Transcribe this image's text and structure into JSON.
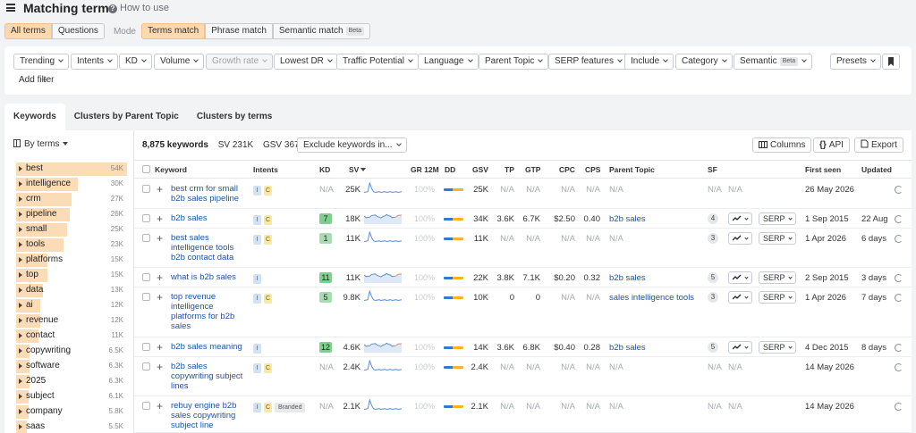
{
  "header": {
    "title": "Matching terms",
    "how_to_use": "How to use"
  },
  "toggles": {
    "all_terms": "All terms",
    "questions": "Questions",
    "mode_label": "Mode",
    "terms_match": "Terms match",
    "phrase_match": "Phrase match",
    "semantic_match": "Semantic match",
    "beta": "Beta"
  },
  "filters": {
    "trending": "Trending",
    "intents": "Intents",
    "kd": "KD",
    "volume": "Volume",
    "growth_rate": "Growth rate",
    "lowest_dr": "Lowest DR",
    "traffic_potential": "Traffic Potential",
    "language": "Language",
    "parent_topic": "Parent Topic",
    "serp_features": "SERP features",
    "include": "Include",
    "category": "Category",
    "semantic": "Semantic",
    "beta": "Beta",
    "presets": "Presets",
    "add_filter": "Add filter"
  },
  "tabs": [
    "Keywords",
    "Clusters by Parent Topic",
    "Clusters by terms"
  ],
  "sidebar": {
    "by_terms": "By terms",
    "terms": [
      {
        "name": "best",
        "count": "54K",
        "fill": 1.0
      },
      {
        "name": "intelligence",
        "count": "30K",
        "fill": 0.56
      },
      {
        "name": "crm",
        "count": "27K",
        "fill": 0.5
      },
      {
        "name": "pipeline",
        "count": "26K",
        "fill": 0.48
      },
      {
        "name": "small",
        "count": "25K",
        "fill": 0.46
      },
      {
        "name": "tools",
        "count": "23K",
        "fill": 0.43
      },
      {
        "name": "platforms",
        "count": "15K",
        "fill": 0.28
      },
      {
        "name": "top",
        "count": "15K",
        "fill": 0.28
      },
      {
        "name": "data",
        "count": "13K",
        "fill": 0.24
      },
      {
        "name": "ai",
        "count": "12K",
        "fill": 0.22
      },
      {
        "name": "revenue",
        "count": "12K",
        "fill": 0.22
      },
      {
        "name": "contact",
        "count": "11K",
        "fill": 0.2
      },
      {
        "name": "copywriting",
        "count": "6.5K",
        "fill": 0.12
      },
      {
        "name": "software",
        "count": "6.3K",
        "fill": 0.12
      },
      {
        "name": "2025",
        "count": "6.3K",
        "fill": 0.12
      },
      {
        "name": "subject",
        "count": "6.1K",
        "fill": 0.11
      },
      {
        "name": "company",
        "count": "5.8K",
        "fill": 0.11
      },
      {
        "name": "saas",
        "count": "5.5K",
        "fill": 0.1
      }
    ]
  },
  "summary": {
    "keywords": "8,875 keywords",
    "sv": "SV 231K",
    "gsv": "GSV 367K",
    "exclude": "Exclude keywords in..."
  },
  "toolbar": {
    "columns": "Columns",
    "api": "API",
    "export": "Export"
  },
  "columns": [
    "Keyword",
    "Intents",
    "KD",
    "SV",
    "GR 12M",
    "DD",
    "GSV",
    "TP",
    "GTP",
    "CPC",
    "CPS",
    "Parent Topic",
    "SF",
    "First seen",
    "Updated"
  ],
  "rows": [
    {
      "keyword": "best crm for small b2b sales pipeline",
      "intents": [
        "I",
        "C"
      ],
      "branded": "",
      "kd": "N/A",
      "sv": "25K",
      "gr": "100%",
      "gsv": "25K",
      "tp": "N/A",
      "gtp": "N/A",
      "cpc": "N/A",
      "cps": "N/A",
      "parent": "N/A",
      "sf": "N/A",
      "sf2": "N/A",
      "first_seen": "26 May 2026",
      "updated": ""
    },
    {
      "keyword": "b2b sales",
      "intents": [
        "I",
        "C"
      ],
      "branded": "",
      "kd": "7",
      "sv": "18K",
      "gr": "100%",
      "gsv": "34K",
      "tp": "3.6K",
      "gtp": "6.7K",
      "cpc": "$2.50",
      "cps": "0.40",
      "parent": "b2b sales",
      "sf": "4",
      "serp": "SERP",
      "first_seen": "1 Sep 2015",
      "updated": "22 Aug"
    },
    {
      "keyword": "best sales intelligence tools b2b contact data",
      "intents": [
        "I",
        "C"
      ],
      "branded": "",
      "kd": "1",
      "sv": "11K",
      "gr": "100%",
      "gsv": "11K",
      "tp": "N/A",
      "gtp": "N/A",
      "cpc": "N/A",
      "cps": "N/A",
      "parent": "N/A",
      "sf": "3",
      "serp": "SERP",
      "first_seen": "1 Apr 2026",
      "updated": "6 days"
    },
    {
      "keyword": "what is b2b sales",
      "intents": [
        "I"
      ],
      "branded": "",
      "kd": "11",
      "sv": "11K",
      "gr": "100%",
      "gsv": "22K",
      "tp": "3.8K",
      "gtp": "7.1K",
      "cpc": "$0.20",
      "cps": "0.32",
      "parent": "b2b sales",
      "sf": "5",
      "serp": "SERP",
      "first_seen": "2 Sep 2015",
      "updated": "3 days"
    },
    {
      "keyword": "top revenue intelligence platforms for b2b sales",
      "intents": [
        "I",
        "C"
      ],
      "branded": "",
      "kd": "5",
      "sv": "9.8K",
      "gr": "100%",
      "gsv": "10K",
      "tp": "0",
      "gtp": "0",
      "cpc": "N/A",
      "cps": "N/A",
      "parent": "sales intelligence tools",
      "sf": "3",
      "serp": "SERP",
      "first_seen": "1 Apr 2026",
      "updated": "7 days"
    },
    {
      "keyword": "b2b sales meaning",
      "intents": [
        "I"
      ],
      "branded": "",
      "kd": "12",
      "sv": "4.6K",
      "gr": "100%",
      "gsv": "14K",
      "tp": "3.6K",
      "gtp": "6.8K",
      "cpc": "$0.40",
      "cps": "0.28",
      "parent": "b2b sales",
      "sf": "5",
      "serp": "SERP",
      "first_seen": "4 Dec 2015",
      "updated": "8 days"
    },
    {
      "keyword": "b2b sales copywriting subject lines",
      "intents": [
        "I",
        "C"
      ],
      "branded": "",
      "kd": "N/A",
      "sv": "2.4K",
      "gr": "100%",
      "gsv": "2.4K",
      "tp": "N/A",
      "gtp": "N/A",
      "cpc": "N/A",
      "cps": "N/A",
      "parent": "N/A",
      "sf": "N/A",
      "sf2": "N/A",
      "first_seen": "14 May 2026",
      "updated": ""
    },
    {
      "keyword": "rebuy engine b2b sales copywriting subject line",
      "intents": [
        "I",
        "C"
      ],
      "branded": "Branded",
      "kd": "N/A",
      "sv": "2.1K",
      "gr": "100%",
      "gsv": "2.1K",
      "tp": "N/A",
      "gtp": "N/A",
      "cpc": "N/A",
      "cps": "N/A",
      "parent": "N/A",
      "sf": "N/A",
      "sf2": "N/A",
      "first_seen": "14 May 2026",
      "updated": ""
    }
  ],
  "colors": {
    "accent_orange": "#fcd9ae",
    "link_blue": "#2153a0",
    "kd_green": "#7fcf8f"
  }
}
